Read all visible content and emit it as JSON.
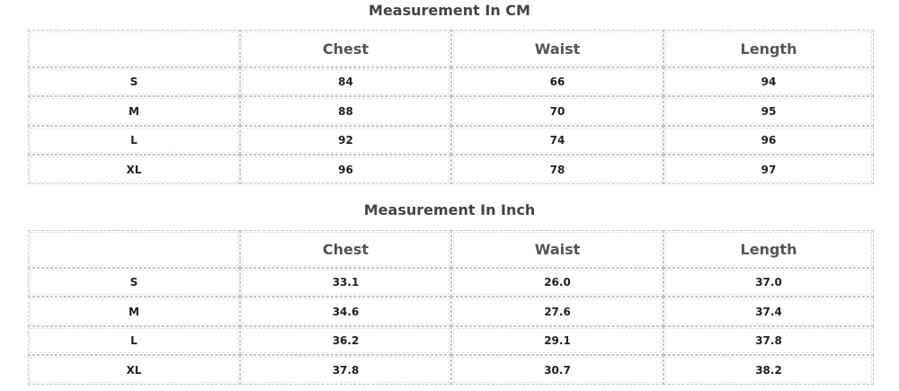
{
  "tables": [
    {
      "title": "Measurement In CM",
      "columns": [
        "Chest",
        "Waist",
        "Length"
      ],
      "rows": [
        {
          "size": "S",
          "values": [
            "84",
            "66",
            "94"
          ]
        },
        {
          "size": "M",
          "values": [
            "88",
            "70",
            "95"
          ]
        },
        {
          "size": "L",
          "values": [
            "92",
            "74",
            "96"
          ]
        },
        {
          "size": "XL",
          "values": [
            "96",
            "78",
            "97"
          ]
        }
      ]
    },
    {
      "title": "Measurement In Inch",
      "columns": [
        "Chest",
        "Waist",
        "Length"
      ],
      "rows": [
        {
          "size": "S",
          "values": [
            "33.1",
            "26.0",
            "37.0"
          ]
        },
        {
          "size": "M",
          "values": [
            "34.6",
            "27.6",
            "37.4"
          ]
        },
        {
          "size": "L",
          "values": [
            "36.2",
            "29.1",
            "37.8"
          ]
        },
        {
          "size": "XL",
          "values": [
            "37.8",
            "30.7",
            "38.2"
          ]
        }
      ]
    }
  ]
}
